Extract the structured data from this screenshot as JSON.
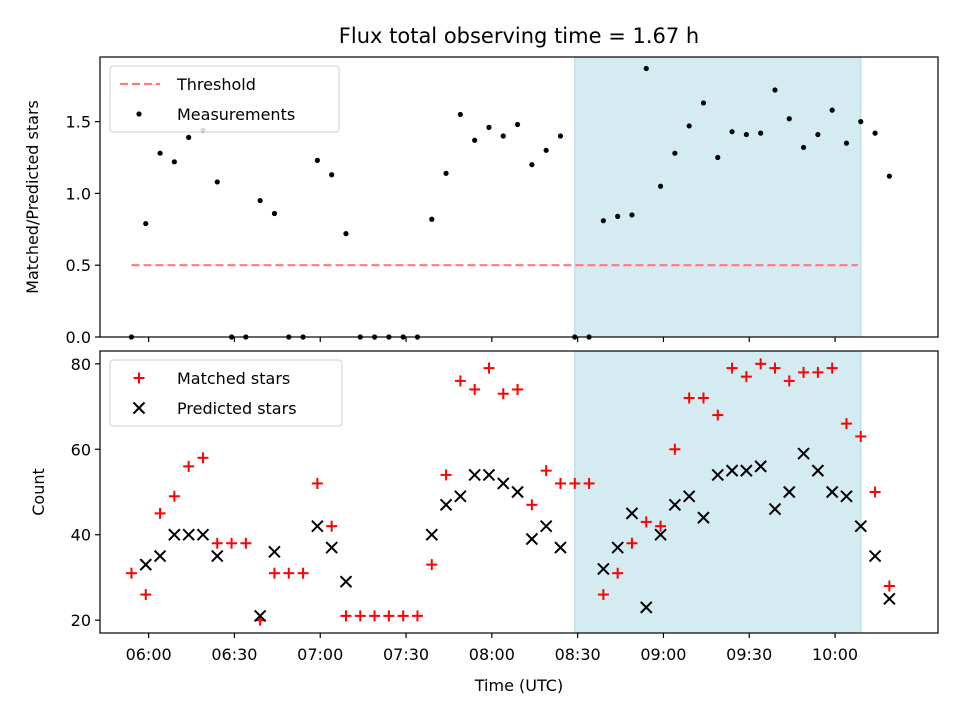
{
  "title": "Flux total observing time = 1.67 h",
  "colors": {
    "threshold": "#ff7a7a",
    "measurements": "#000000",
    "matched": "#ff0000",
    "predicted": "#000000",
    "highlight": "#d4ebf1",
    "highlight_edge": "#aad8e2"
  },
  "chart_data": [
    {
      "type": "scatter",
      "ylabel": "Matched/Predicted stars",
      "xlim": [
        "05:43",
        "10:36"
      ],
      "ylim": [
        0,
        1.95
      ],
      "yticks": [
        0.0,
        0.5,
        1.0,
        1.5
      ],
      "ytick_labels": [
        "0.0",
        "0.5",
        "1.0",
        "1.5"
      ],
      "xticks": [
        "06:00",
        "06:30",
        "07:00",
        "07:30",
        "08:00",
        "08:30",
        "09:00",
        "09:30",
        "10:00"
      ],
      "highlight_span": [
        "08:29",
        "10:09"
      ],
      "legend": {
        "placement": "upper-left",
        "entries": [
          "Threshold",
          "Measurements"
        ]
      },
      "series": [
        {
          "name": "Threshold",
          "kind": "dashed-line",
          "points": [
            [
              "05:54",
              0.5
            ],
            [
              "10:08",
              0.5
            ]
          ]
        },
        {
          "name": "Measurements",
          "kind": "dot",
          "points": [
            [
              "05:54",
              0.0
            ],
            [
              "05:59",
              0.79
            ],
            [
              "06:04",
              1.28
            ],
            [
              "06:09",
              1.22
            ],
            [
              "06:14",
              1.39
            ],
            [
              "06:19",
              1.44
            ],
            [
              "06:24",
              1.08
            ],
            [
              "06:29",
              0.0
            ],
            [
              "06:34",
              0.0
            ],
            [
              "06:39",
              0.95
            ],
            [
              "06:44",
              0.86
            ],
            [
              "06:49",
              0.0
            ],
            [
              "06:54",
              0.0
            ],
            [
              "06:59",
              1.23
            ],
            [
              "07:04",
              1.13
            ],
            [
              "07:09",
              0.72
            ],
            [
              "07:14",
              0.0
            ],
            [
              "07:19",
              0.0
            ],
            [
              "07:24",
              0.0
            ],
            [
              "07:29",
              0.0
            ],
            [
              "07:34",
              0.0
            ],
            [
              "07:39",
              0.82
            ],
            [
              "07:44",
              1.14
            ],
            [
              "07:49",
              1.55
            ],
            [
              "07:54",
              1.37
            ],
            [
              "07:59",
              1.46
            ],
            [
              "08:04",
              1.4
            ],
            [
              "08:09",
              1.48
            ],
            [
              "08:14",
              1.2
            ],
            [
              "08:19",
              1.3
            ],
            [
              "08:24",
              1.4
            ],
            [
              "08:29",
              0.0
            ],
            [
              "08:34",
              0.0
            ],
            [
              "08:39",
              0.81
            ],
            [
              "08:44",
              0.84
            ],
            [
              "08:49",
              0.85
            ],
            [
              "08:54",
              1.87
            ],
            [
              "08:59",
              1.05
            ],
            [
              "09:04",
              1.28
            ],
            [
              "09:09",
              1.47
            ],
            [
              "09:14",
              1.63
            ],
            [
              "09:19",
              1.25
            ],
            [
              "09:24",
              1.43
            ],
            [
              "09:29",
              1.41
            ],
            [
              "09:34",
              1.42
            ],
            [
              "09:39",
              1.72
            ],
            [
              "09:44",
              1.52
            ],
            [
              "09:49",
              1.32
            ],
            [
              "09:54",
              1.41
            ],
            [
              "09:59",
              1.58
            ],
            [
              "10:04",
              1.35
            ],
            [
              "10:09",
              1.5
            ],
            [
              "10:14",
              1.42
            ],
            [
              "10:19",
              1.12
            ]
          ]
        }
      ]
    },
    {
      "type": "scatter",
      "xlabel": "Time (UTC)",
      "ylabel": "Count",
      "xlim": [
        "05:43",
        "10:36"
      ],
      "ylim": [
        17,
        83
      ],
      "yticks": [
        20,
        40,
        60,
        80
      ],
      "ytick_labels": [
        "20",
        "40",
        "60",
        "80"
      ],
      "xticks": [
        "06:00",
        "06:30",
        "07:00",
        "07:30",
        "08:00",
        "08:30",
        "09:00",
        "09:30",
        "10:00"
      ],
      "xtick_labels": [
        "06:00",
        "06:30",
        "07:00",
        "07:30",
        "08:00",
        "08:30",
        "09:00",
        "09:30",
        "10:00"
      ],
      "highlight_span": [
        "08:29",
        "10:09"
      ],
      "legend": {
        "placement": "upper-left",
        "entries": [
          "Matched stars",
          "Predicted stars"
        ]
      },
      "series": [
        {
          "name": "Matched stars",
          "kind": "plus",
          "points": [
            [
              "05:54",
              31
            ],
            [
              "05:59",
              26
            ],
            [
              "06:04",
              45
            ],
            [
              "06:09",
              49
            ],
            [
              "06:14",
              56
            ],
            [
              "06:19",
              58
            ],
            [
              "06:24",
              38
            ],
            [
              "06:29",
              38
            ],
            [
              "06:34",
              38
            ],
            [
              "06:39",
              20
            ],
            [
              "06:44",
              31
            ],
            [
              "06:49",
              31
            ],
            [
              "06:54",
              31
            ],
            [
              "06:59",
              52
            ],
            [
              "07:04",
              42
            ],
            [
              "07:09",
              21
            ],
            [
              "07:14",
              21
            ],
            [
              "07:19",
              21
            ],
            [
              "07:24",
              21
            ],
            [
              "07:29",
              21
            ],
            [
              "07:34",
              21
            ],
            [
              "07:39",
              33
            ],
            [
              "07:44",
              54
            ],
            [
              "07:49",
              76
            ],
            [
              "07:54",
              74
            ],
            [
              "07:59",
              79
            ],
            [
              "08:04",
              73
            ],
            [
              "08:09",
              74
            ],
            [
              "08:14",
              47
            ],
            [
              "08:19",
              55
            ],
            [
              "08:24",
              52
            ],
            [
              "08:29",
              52
            ],
            [
              "08:34",
              52
            ],
            [
              "08:39",
              26
            ],
            [
              "08:44",
              31
            ],
            [
              "08:49",
              38
            ],
            [
              "08:54",
              43
            ],
            [
              "08:59",
              42
            ],
            [
              "09:04",
              60
            ],
            [
              "09:09",
              72
            ],
            [
              "09:14",
              72
            ],
            [
              "09:19",
              68
            ],
            [
              "09:24",
              79
            ],
            [
              "09:29",
              77
            ],
            [
              "09:34",
              80
            ],
            [
              "09:39",
              79
            ],
            [
              "09:44",
              76
            ],
            [
              "09:49",
              78
            ],
            [
              "09:54",
              78
            ],
            [
              "09:59",
              79
            ],
            [
              "10:04",
              66
            ],
            [
              "10:09",
              63
            ],
            [
              "10:14",
              50
            ],
            [
              "10:19",
              28
            ]
          ]
        },
        {
          "name": "Predicted stars",
          "kind": "x",
          "points": [
            [
              "05:59",
              33
            ],
            [
              "06:04",
              35
            ],
            [
              "06:09",
              40
            ],
            [
              "06:14",
              40
            ],
            [
              "06:19",
              40
            ],
            [
              "06:24",
              35
            ],
            [
              "06:39",
              21
            ],
            [
              "06:44",
              36
            ],
            [
              "06:59",
              42
            ],
            [
              "07:04",
              37
            ],
            [
              "07:09",
              29
            ],
            [
              "07:39",
              40
            ],
            [
              "07:44",
              47
            ],
            [
              "07:49",
              49
            ],
            [
              "07:54",
              54
            ],
            [
              "07:59",
              54
            ],
            [
              "08:04",
              52
            ],
            [
              "08:09",
              50
            ],
            [
              "08:14",
              39
            ],
            [
              "08:19",
              42
            ],
            [
              "08:24",
              37
            ],
            [
              "08:39",
              32
            ],
            [
              "08:44",
              37
            ],
            [
              "08:49",
              45
            ],
            [
              "08:54",
              23
            ],
            [
              "08:59",
              40
            ],
            [
              "09:04",
              47
            ],
            [
              "09:09",
              49
            ],
            [
              "09:14",
              44
            ],
            [
              "09:19",
              54
            ],
            [
              "09:24",
              55
            ],
            [
              "09:29",
              55
            ],
            [
              "09:34",
              56
            ],
            [
              "09:39",
              46
            ],
            [
              "09:44",
              50
            ],
            [
              "09:49",
              59
            ],
            [
              "09:54",
              55
            ],
            [
              "09:59",
              50
            ],
            [
              "10:04",
              49
            ],
            [
              "10:09",
              42
            ],
            [
              "10:14",
              35
            ],
            [
              "10:19",
              25
            ]
          ]
        }
      ]
    }
  ]
}
